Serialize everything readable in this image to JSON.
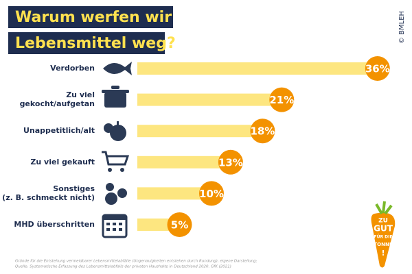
{
  "chart_data": {
    "type": "bar",
    "title": [
      "Warum werfen wir",
      "Lebensmittel weg?"
    ],
    "categories": [
      "Verdorben",
      "Zu viel\ngekocht/aufgetan",
      "Unappetitlich/alt",
      "Zu viel gekauft",
      "Sonstiges\n(z. B. schmeckt nicht)",
      "MHD überschritten"
    ],
    "values": [
      36,
      21,
      18,
      13,
      10,
      5
    ],
    "value_labels": [
      "36%",
      "21%",
      "18%",
      "13%",
      "10%",
      "5%"
    ],
    "color": "#fde680",
    "label_color": "#f39200",
    "copyright": "© BMLEH",
    "notes": [
      "Gründe für die Entstehung vermeidbarer Lebensmittelabfälle (Ungenauigkeiten entstehen durch Rundung), eigene Darstellung;",
      "Quelle: Systematische Erfassung des Lebensmittelabfalls der privaten Haushalte in Deutschland 2020. GfK (2021)"
    ],
    "logo": [
      "ZU",
      "GUT",
      "FÜR DIE",
      "TONNE",
      "!"
    ]
  }
}
